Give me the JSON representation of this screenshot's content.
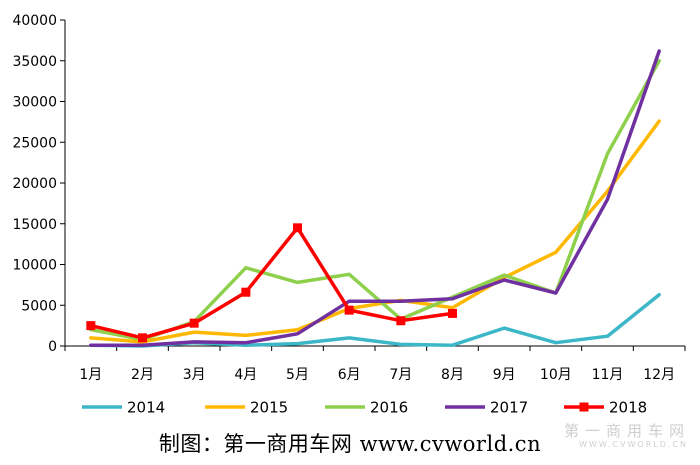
{
  "chart_data": {
    "type": "line",
    "title": "",
    "xlabel": "",
    "ylabel": "",
    "categories": [
      "1月",
      "2月",
      "3月",
      "4月",
      "5月",
      "6月",
      "7月",
      "8月",
      "9月",
      "10月",
      "11月",
      "12月"
    ],
    "ylim": [
      0,
      40000
    ],
    "yticks": [
      0,
      5000,
      10000,
      15000,
      20000,
      25000,
      30000,
      35000,
      40000
    ],
    "grid": false,
    "legend": "bottom",
    "series": [
      {
        "name": "2014",
        "color": "#3bb7c7",
        "marker": "none",
        "values": [
          100,
          0,
          400,
          100,
          300,
          1000,
          200,
          100,
          2200,
          400,
          1200,
          6300
        ]
      },
      {
        "name": "2015",
        "color": "#ffb800",
        "marker": "none",
        "values": [
          1000,
          500,
          1700,
          1300,
          2000,
          4600,
          5600,
          4700,
          8400,
          11500,
          19000,
          27600
        ]
      },
      {
        "name": "2016",
        "color": "#8ed04b",
        "marker": "none",
        "values": [
          2000,
          800,
          3000,
          9600,
          7800,
          8800,
          3300,
          6000,
          8700,
          6500,
          23600,
          35000
        ]
      },
      {
        "name": "2017",
        "color": "#7030a0",
        "marker": "none",
        "values": [
          100,
          100,
          500,
          400,
          1500,
          5500,
          5500,
          5800,
          8100,
          6500,
          18000,
          36200
        ]
      },
      {
        "name": "2018",
        "color": "#ff0000",
        "marker": "square",
        "values": [
          2500,
          1000,
          2800,
          6600,
          14500,
          4400,
          3100,
          4000,
          null,
          null,
          null,
          null
        ]
      }
    ]
  },
  "caption": {
    "text": "制图：第一商用车网 www.cvworld.cn"
  },
  "watermark": {
    "text": "第一商用车网",
    "sub": "WWW.CVWORLD.CN"
  }
}
